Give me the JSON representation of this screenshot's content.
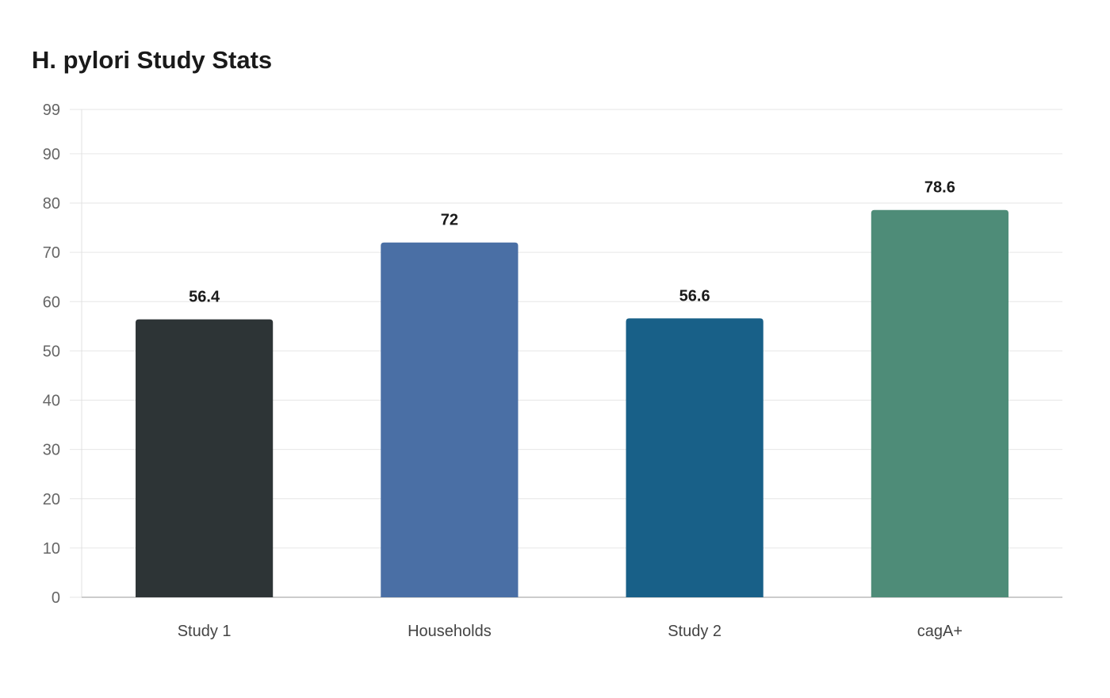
{
  "chart_data": {
    "type": "bar",
    "title": "H. pylori Study Stats",
    "xlabel": "",
    "ylabel": "",
    "categories": [
      "Study 1",
      "Households",
      "Study 2",
      "cagA+"
    ],
    "values": [
      56.4,
      72,
      56.6,
      78.6
    ],
    "value_labels": [
      "56.4",
      "72",
      "56.6",
      "78.6"
    ],
    "colors": [
      "#2d3436",
      "#4a6fa5",
      "#186088",
      "#4e8c78"
    ],
    "ylim": [
      0,
      99
    ],
    "yticks": [
      0,
      10,
      20,
      30,
      40,
      50,
      60,
      70,
      80,
      90,
      99
    ],
    "grid": true,
    "legend": "none"
  }
}
